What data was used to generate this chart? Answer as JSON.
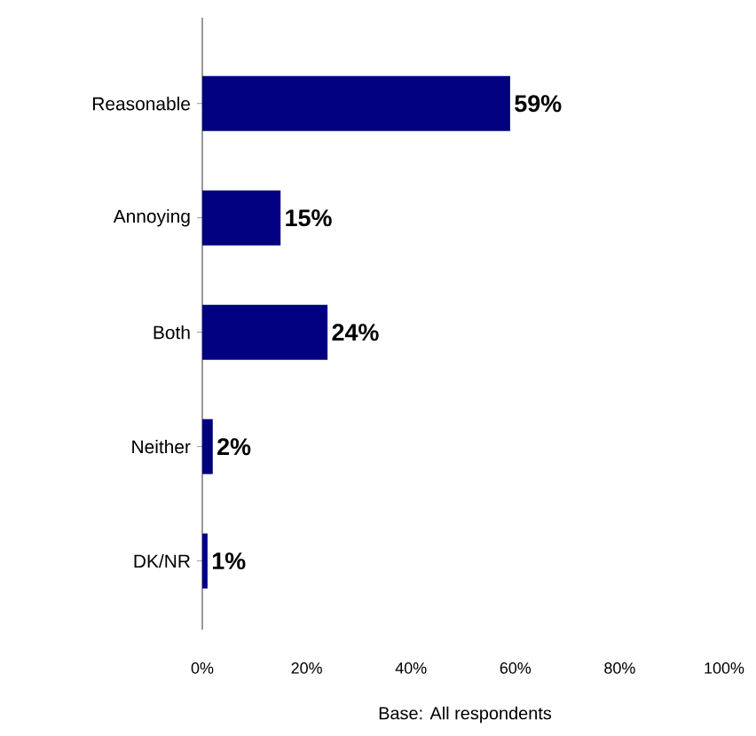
{
  "chart_data": {
    "type": "bar",
    "orientation": "horizontal",
    "categories": [
      "Reasonable",
      "Annoying",
      "Both",
      "Neither",
      "DK/NR"
    ],
    "values": [
      59,
      15,
      24,
      2,
      1
    ],
    "value_labels": [
      "59%",
      "15%",
      "24%",
      "2%",
      "1%"
    ],
    "color": "#000080",
    "xlim": [
      0,
      100
    ],
    "xticks": [
      {
        "value": 0,
        "label": "0%"
      },
      {
        "value": 20,
        "label": "20%"
      },
      {
        "value": 40,
        "label": "40%"
      },
      {
        "value": 60,
        "label": "60%"
      },
      {
        "value": 80,
        "label": "80%"
      },
      {
        "value": 100,
        "label": "100%"
      }
    ],
    "annotations": [
      "Base: All respondents"
    ],
    "grid": false
  }
}
